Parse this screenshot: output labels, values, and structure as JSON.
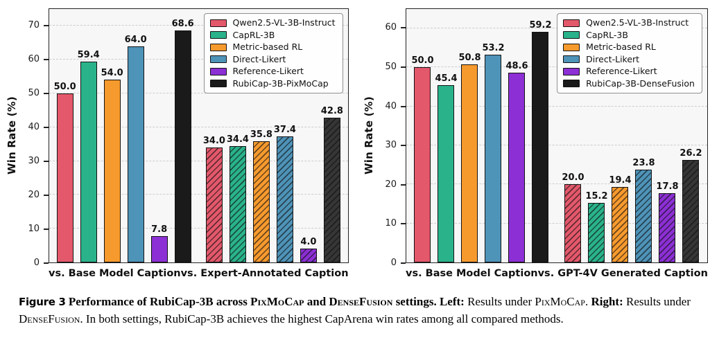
{
  "figure_caption": {
    "segments": [
      {
        "text": "Figure 3",
        "style": "figlabel"
      },
      {
        "text": "  Performance of RubiCap-3B across ",
        "style": "bold"
      },
      {
        "text": "PixMoCap",
        "style": "bold-sc"
      },
      {
        "text": " and ",
        "style": "bold"
      },
      {
        "text": "DenseFusion",
        "style": "bold-sc"
      },
      {
        "text": " settings. ",
        "style": "bold"
      },
      {
        "text": "Left:",
        "style": "bold"
      },
      {
        "text": " Results under ",
        "style": "normal"
      },
      {
        "text": "PixMoCap",
        "style": "sc"
      },
      {
        "text": ". ",
        "style": "normal"
      },
      {
        "text": "Right:",
        "style": "bold"
      },
      {
        "text": " Results under ",
        "style": "normal"
      },
      {
        "text": "DenseFusion",
        "style": "sc"
      },
      {
        "text": ". In both settings, RubiCap-3B achieves the highest CapArena win rates among all compared methods.",
        "style": "normal"
      }
    ]
  },
  "colors": {
    "plot_background": "#f7f7f8",
    "grid": "#cccccc",
    "axis": "#222222",
    "qwen_red": "#e4586b",
    "caprl_green": "#2ab38b",
    "metric_orange": "#f79a2e",
    "direct_blue": "#4e93b8",
    "reference_purple": "#8c2fd4",
    "rubicap_black": "#1a1a1a"
  },
  "chart_data": [
    {
      "type": "bar",
      "title": "",
      "xlabel": "",
      "ylabel": "Win Rate (%)",
      "ylim": [
        0,
        75
      ],
      "yticks": [
        0,
        10,
        20,
        30,
        40,
        50,
        60,
        70
      ],
      "grid": "dashed-horizontal",
      "legend_position": "top-right",
      "categories": [
        "vs. Base Model Caption",
        "vs. Expert-Annotated Caption"
      ],
      "category_hatched": [
        false,
        true
      ],
      "value_label_decimals": 1,
      "series": [
        {
          "name": "Qwen2.5-VL-3B-Instruct",
          "color": "#e4586b",
          "values": [
            50.0,
            34.0
          ]
        },
        {
          "name": "CapRL-3B",
          "color": "#2ab38b",
          "values": [
            59.4,
            34.4
          ]
        },
        {
          "name": "Metric-based RL",
          "color": "#f79a2e",
          "values": [
            54.0,
            35.8
          ]
        },
        {
          "name": "Direct-Likert",
          "color": "#4e93b8",
          "values": [
            64.0,
            37.4
          ]
        },
        {
          "name": "Reference-Likert",
          "color": "#8c2fd4",
          "values": [
            7.8,
            4.0
          ]
        },
        {
          "name": "RubiCap-3B-PixMoCap",
          "color": "#1a1a1a",
          "hatch_face": "#363636",
          "values": [
            68.6,
            42.8
          ]
        }
      ]
    },
    {
      "type": "bar",
      "title": "",
      "xlabel": "",
      "ylabel": "Win Rate (%)",
      "ylim": [
        0,
        65
      ],
      "yticks": [
        0,
        10,
        20,
        30,
        40,
        50,
        60
      ],
      "grid": "dashed-horizontal",
      "legend_position": "top-right",
      "categories": [
        "vs. Base Model Caption",
        "vs. GPT-4V Generated Caption"
      ],
      "category_hatched": [
        false,
        true
      ],
      "value_label_decimals": 1,
      "series": [
        {
          "name": "Qwen2.5-VL-3B-Instruct",
          "color": "#e4586b",
          "values": [
            50.0,
            20.0
          ]
        },
        {
          "name": "CapRL-3B",
          "color": "#2ab38b",
          "values": [
            45.4,
            15.2
          ]
        },
        {
          "name": "Metric-based RL",
          "color": "#f79a2e",
          "values": [
            50.8,
            19.4
          ]
        },
        {
          "name": "Direct-Likert",
          "color": "#4e93b8",
          "values": [
            53.2,
            23.8
          ]
        },
        {
          "name": "Reference-Likert",
          "color": "#8c2fd4",
          "values": [
            48.6,
            17.8
          ]
        },
        {
          "name": "RubiCap-3B-DenseFusion",
          "color": "#1a1a1a",
          "hatch_face": "#363636",
          "values": [
            59.2,
            26.2
          ]
        }
      ]
    }
  ]
}
